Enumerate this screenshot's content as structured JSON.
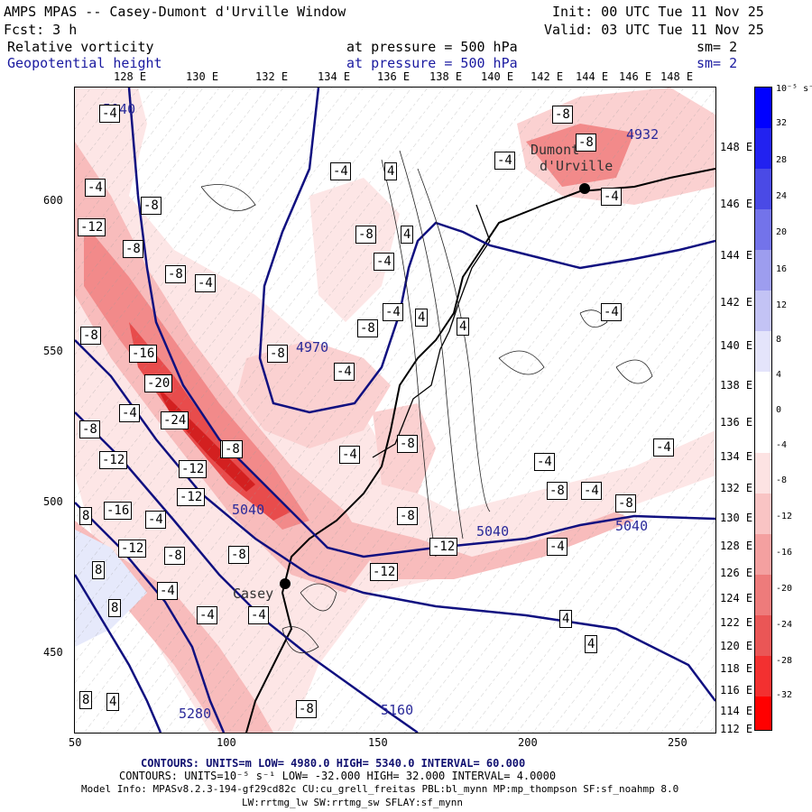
{
  "header": {
    "title": "AMPS MPAS -- Casey-Dumont d'Urville Window",
    "init": "Init: 00 UTC Tue 11 Nov 25",
    "forecast": "Fcst:    3 h",
    "valid": "Valid: 03 UTC Tue 11 Nov 25",
    "field1_name": "Relative vorticity",
    "field1_level": "at pressure =  500 hPa",
    "field1_sm": "sm= 2",
    "field2_name": "Geopotential height",
    "field2_level": "at pressure =  500 hPa",
    "field2_sm": "sm= 2"
  },
  "colors": {
    "height_contour": "#101080",
    "neg_strong": "#ff0000",
    "pos_strong": "#0000ff"
  },
  "axes": {
    "x_ticks": [
      "50",
      "100",
      "150",
      "200",
      "250"
    ],
    "y_ticks": [
      "600",
      "550",
      "500",
      "450"
    ],
    "lon_top": [
      "128 E",
      "130 E",
      "132 E",
      "134 E",
      "136 E",
      "138 E",
      "140 E",
      "142 E",
      "144 E",
      "146 E",
      "148 E"
    ],
    "lon_right": [
      "148 E",
      "146 E",
      "144 E",
      "142 E",
      "140 E",
      "138 E",
      "136 E",
      "134 E",
      "132 E",
      "130 E",
      "128 E",
      "126 E",
      "124 E",
      "122 E",
      "120 E",
      "118 E",
      "116 E",
      "114 E",
      "112 E"
    ]
  },
  "colorbar": {
    "unit": "10⁻⁵ s⁻¹",
    "labels": [
      "32",
      "28",
      "24",
      "20",
      "16",
      "12",
      "8",
      "4",
      "0",
      "-4",
      "-8",
      "-12",
      "-16",
      "-20",
      "-24",
      "-28",
      "-32"
    ]
  },
  "places": {
    "dumont": "Dumont",
    "durville": "d'Urville",
    "casey": "Casey"
  },
  "height_labels": [
    "5040",
    "4970",
    "5040",
    "5040",
    "5040",
    "4932",
    "5280",
    "5160"
  ],
  "vort_labels": [
    "-4",
    "-8",
    "-12",
    "-8",
    "-8",
    "-4",
    "-8",
    "-16",
    "-20",
    "-4",
    "-24",
    "-8",
    "-12",
    "-8",
    "-12",
    "-16",
    "-4",
    "-12",
    "-8",
    "-8",
    "-4",
    "-8",
    "-4",
    "-4",
    "-4",
    "-4",
    "-8",
    "-4",
    "-4",
    "-4",
    "-4",
    "-8",
    "-4",
    "-8",
    "-4",
    "-8",
    "-8",
    "-8",
    "-12",
    "-12",
    "-4",
    "-8",
    "-4",
    "-4",
    "-8",
    "-12",
    "-8",
    "-4",
    "4",
    "4",
    "4",
    "4",
    "8",
    "8",
    "8",
    "8",
    "-8",
    "4",
    "4",
    "-4",
    "4"
  ],
  "footer": {
    "contours1": "CONTOURS:  UNITS=m  LOW=  4980.0        HIGH=  5340.0        INTERVAL=  60.000",
    "contours2": "CONTOURS:  UNITS=10⁻⁵ s⁻¹  LOW= -32.000        HIGH=  32.000        INTERVAL=   4.0000",
    "model1": "Model Info: MPASv8.2.3-194-gf29cd82c CU:cu_grell_freitas PBL:bl_mynn MP:mp_thompson SF:sf_noahmp 8.0",
    "model2": "LW:rrtmg_lw SW:rrtmg_sw SFLAY:sf_mynn"
  }
}
